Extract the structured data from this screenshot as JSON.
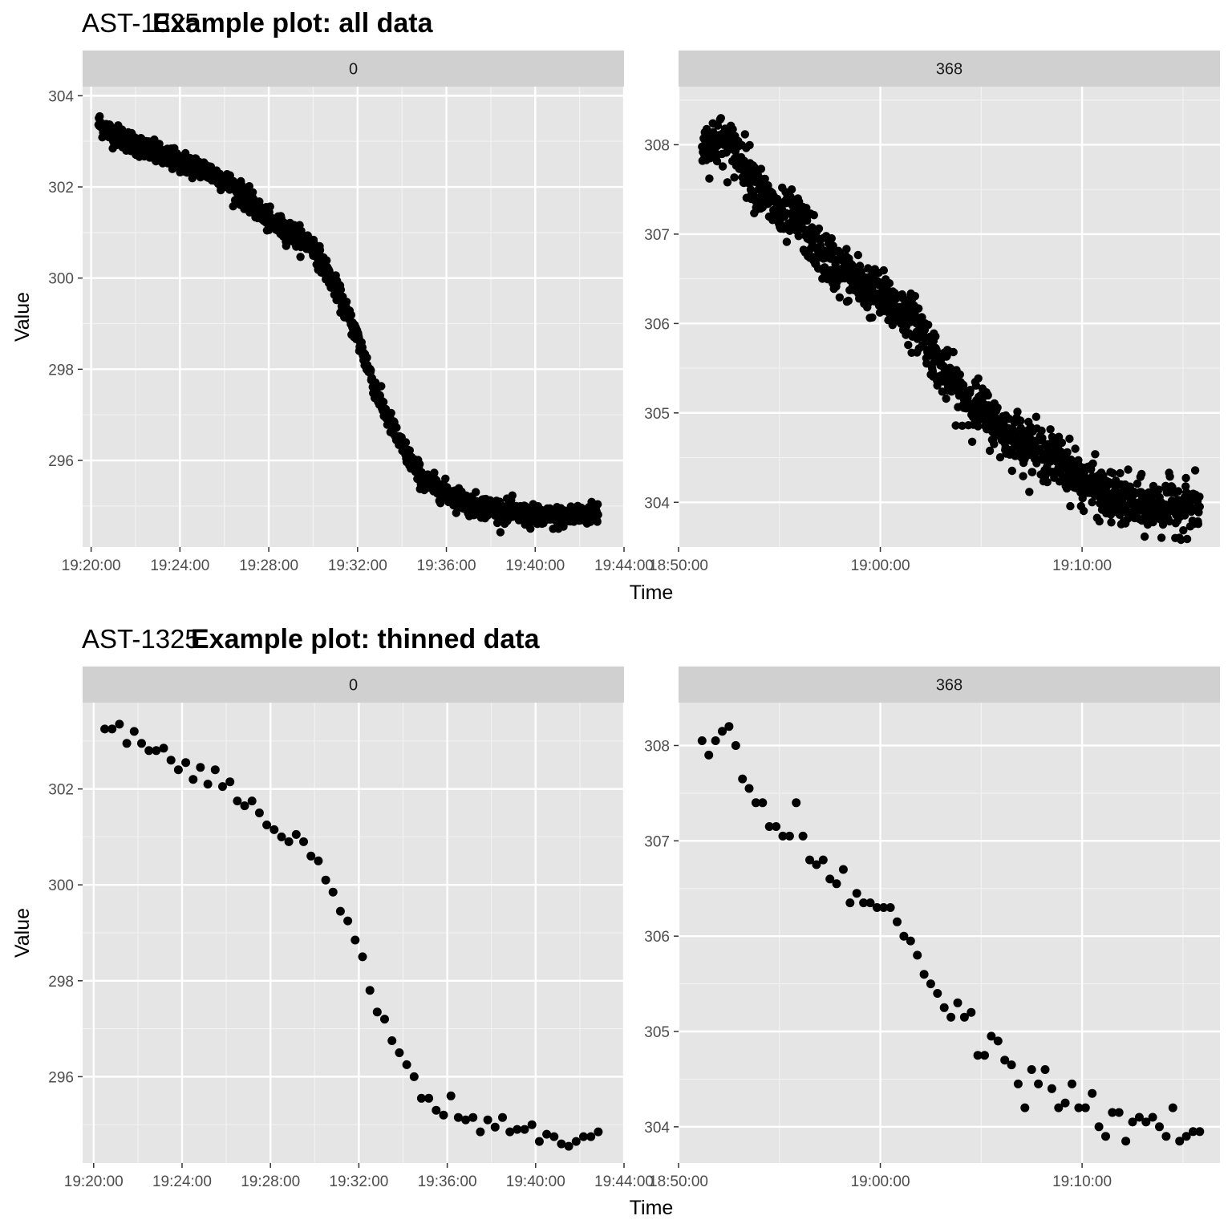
{
  "figure": {
    "rows": [
      {
        "title_prefix": "AST-1325",
        "title": "Example plot: all data",
        "xlabel": "Time",
        "ylabel": "Value"
      },
      {
        "title_prefix": "AST-1325",
        "title": "Example plot: thinned data",
        "xlabel": "Time",
        "ylabel": "Value"
      }
    ]
  },
  "colors": {
    "panel_background": "#e5e5e5",
    "strip_background": "#d0d0d0",
    "grid_major": "#ffffff",
    "grid_minor": "#f2f2f2",
    "points": "#000000",
    "tick_text": "#4d4d4d"
  },
  "chart_data": [
    {
      "type": "scatter",
      "plot": "Example plot: all data",
      "facet": "0",
      "xlabel": "Time",
      "ylabel": "Value",
      "xlim": [
        "19:19:37",
        "19:44:00"
      ],
      "ylim": [
        294.1,
        304.2
      ],
      "x_ticks": [
        "19:20:00",
        "19:24:00",
        "19:28:00",
        "19:32:00",
        "19:36:00",
        "19:40:00",
        "19:44:00"
      ],
      "y_ticks": [
        296,
        298,
        300,
        302,
        304
      ],
      "grid": true,
      "noise": 0.12,
      "x": [
        "19:20:20",
        "19:21:00",
        "19:22:00",
        "19:23:00",
        "19:24:00",
        "19:25:00",
        "19:26:00",
        "19:27:00",
        "19:28:00",
        "19:29:00",
        "19:30:00",
        "19:31:00",
        "19:32:00",
        "19:33:00",
        "19:34:00",
        "19:35:00",
        "19:36:00",
        "19:37:00",
        "19:38:00",
        "19:39:00",
        "19:40:00",
        "19:41:00",
        "19:42:00",
        "19:42:50"
      ],
      "y": [
        303.4,
        303.15,
        302.95,
        302.7,
        302.55,
        302.4,
        302.15,
        301.75,
        301.25,
        301.0,
        300.7,
        299.8,
        298.7,
        297.3,
        296.3,
        295.55,
        295.3,
        295.05,
        294.95,
        294.85,
        294.75,
        294.75,
        294.8,
        294.85
      ]
    },
    {
      "type": "scatter",
      "plot": "Example plot: all data",
      "facet": "368",
      "xlabel": "Time",
      "ylabel": "Value",
      "xlim": [
        "18:50:00",
        "19:16:50"
      ],
      "ylim": [
        303.5,
        308.65
      ],
      "x_ticks": [
        "18:50:00",
        "19:00:00",
        "19:10:00"
      ],
      "y_ticks": [
        304,
        305,
        306,
        307,
        308
      ],
      "grid": true,
      "noise": 0.14,
      "x": [
        "18:51:10",
        "18:52:00",
        "18:53:00",
        "18:54:00",
        "18:55:00",
        "18:56:00",
        "18:57:00",
        "18:58:00",
        "18:59:00",
        "19:00:00",
        "19:01:00",
        "19:02:00",
        "19:03:00",
        "19:04:00",
        "19:05:00",
        "19:06:00",
        "19:07:00",
        "19:08:00",
        "19:09:00",
        "19:10:00",
        "19:11:00",
        "19:12:00",
        "19:13:00",
        "19:14:00",
        "19:15:00",
        "19:15:50"
      ],
      "y": [
        308.0,
        308.05,
        307.9,
        307.5,
        307.2,
        307.15,
        306.8,
        306.6,
        306.45,
        306.3,
        306.15,
        305.95,
        305.5,
        305.2,
        305.05,
        304.8,
        304.7,
        304.55,
        304.45,
        304.25,
        304.1,
        304.0,
        303.95,
        303.95,
        303.95,
        303.95
      ]
    },
    {
      "type": "scatter",
      "plot": "Example plot: thinned data",
      "facet": "0",
      "xlabel": "Time",
      "ylabel": "Value",
      "xlim": [
        "19:19:30",
        "19:44:00"
      ],
      "ylim": [
        294.2,
        303.8
      ],
      "x_ticks": [
        "19:20:00",
        "19:24:00",
        "19:28:00",
        "19:32:00",
        "19:36:00",
        "19:40:00",
        "19:44:00"
      ],
      "y_ticks": [
        296,
        298,
        300,
        302
      ],
      "grid": true,
      "x": [
        "19:20:30",
        "19:20:50",
        "19:21:10",
        "19:21:30",
        "19:21:50",
        "19:22:10",
        "19:22:30",
        "19:22:50",
        "19:23:10",
        "19:23:30",
        "19:23:50",
        "19:24:10",
        "19:24:30",
        "19:24:50",
        "19:25:10",
        "19:25:30",
        "19:25:50",
        "19:26:10",
        "19:26:30",
        "19:26:50",
        "19:27:10",
        "19:27:30",
        "19:27:50",
        "19:28:10",
        "19:28:30",
        "19:28:50",
        "19:29:10",
        "19:29:30",
        "19:29:50",
        "19:30:10",
        "19:30:30",
        "19:30:50",
        "19:31:10",
        "19:31:30",
        "19:31:50",
        "19:32:10",
        "19:32:30",
        "19:32:50",
        "19:33:10",
        "19:33:30",
        "19:33:50",
        "19:34:10",
        "19:34:30",
        "19:34:50",
        "19:35:10",
        "19:35:30",
        "19:35:50",
        "19:36:10",
        "19:36:30",
        "19:36:50",
        "19:37:10",
        "19:37:30",
        "19:37:50",
        "19:38:10",
        "19:38:30",
        "19:38:50",
        "19:39:10",
        "19:39:30",
        "19:39:50",
        "19:40:10",
        "19:40:30",
        "19:40:50",
        "19:41:10",
        "19:41:30",
        "19:41:50",
        "19:42:10",
        "19:42:30",
        "19:42:50"
      ],
      "y": [
        303.25,
        303.25,
        303.35,
        302.95,
        303.2,
        302.95,
        302.8,
        302.8,
        302.85,
        302.6,
        302.4,
        302.55,
        302.2,
        302.45,
        302.1,
        302.4,
        302.05,
        302.15,
        301.75,
        301.65,
        301.75,
        301.5,
        301.25,
        301.15,
        301.0,
        300.9,
        301.05,
        300.9,
        300.6,
        300.5,
        300.1,
        299.85,
        299.45,
        299.25,
        298.85,
        298.5,
        297.8,
        297.35,
        297.2,
        296.75,
        296.5,
        296.25,
        296.0,
        295.55,
        295.55,
        295.3,
        295.2,
        295.6,
        295.15,
        295.1,
        295.15,
        294.85,
        295.1,
        294.95,
        295.15,
        294.85,
        294.9,
        294.9,
        295.0,
        294.65,
        294.8,
        294.75,
        294.6,
        294.55,
        294.65,
        294.75,
        294.75,
        294.85
      ]
    },
    {
      "type": "scatter",
      "plot": "Example plot: thinned data",
      "facet": "368",
      "xlabel": "Time",
      "ylabel": "Value",
      "xlim": [
        "18:50:00",
        "19:16:50"
      ],
      "ylim": [
        303.62,
        308.45
      ],
      "x_ticks": [
        "18:50:00",
        "19:00:00",
        "19:10:00"
      ],
      "y_ticks": [
        304,
        305,
        306,
        307,
        308
      ],
      "grid": true,
      "x": [
        "18:51:10",
        "18:51:30",
        "18:51:50",
        "18:52:10",
        "18:52:30",
        "18:52:50",
        "18:53:10",
        "18:53:30",
        "18:53:50",
        "18:54:10",
        "18:54:30",
        "18:54:50",
        "18:55:10",
        "18:55:30",
        "18:55:50",
        "18:56:10",
        "18:56:30",
        "18:56:50",
        "18:57:10",
        "18:57:30",
        "18:57:50",
        "18:58:10",
        "18:58:30",
        "18:58:50",
        "18:59:10",
        "18:59:30",
        "18:59:50",
        "19:00:10",
        "19:00:30",
        "19:00:50",
        "19:01:10",
        "19:01:30",
        "19:01:50",
        "19:02:10",
        "19:02:30",
        "19:02:50",
        "19:03:10",
        "19:03:30",
        "19:03:50",
        "19:04:10",
        "19:04:30",
        "19:04:50",
        "19:05:10",
        "19:05:30",
        "19:05:50",
        "19:06:10",
        "19:06:30",
        "19:06:50",
        "19:07:10",
        "19:07:30",
        "19:07:50",
        "19:08:10",
        "19:08:30",
        "19:08:50",
        "19:09:10",
        "19:09:30",
        "19:09:50",
        "19:10:10",
        "19:10:30",
        "19:10:50",
        "19:11:10",
        "19:11:30",
        "19:11:50",
        "19:12:10",
        "19:12:30",
        "19:12:50",
        "19:13:10",
        "19:13:30",
        "19:13:50",
        "19:14:10",
        "19:14:30",
        "19:14:50",
        "19:15:10",
        "19:15:30",
        "19:15:50"
      ],
      "y": [
        308.05,
        307.9,
        308.05,
        308.15,
        308.2,
        308.0,
        307.65,
        307.55,
        307.4,
        307.4,
        307.15,
        307.15,
        307.05,
        307.05,
        307.4,
        307.05,
        306.8,
        306.75,
        306.8,
        306.6,
        306.55,
        306.7,
        306.35,
        306.45,
        306.35,
        306.35,
        306.3,
        306.3,
        306.3,
        306.15,
        306.0,
        305.95,
        305.8,
        305.6,
        305.5,
        305.4,
        305.25,
        305.15,
        305.3,
        305.15,
        305.2,
        304.75,
        304.75,
        304.95,
        304.9,
        304.7,
        304.65,
        304.45,
        304.2,
        304.6,
        304.45,
        304.6,
        304.4,
        304.2,
        304.25,
        304.45,
        304.2,
        304.2,
        304.35,
        304.0,
        303.9,
        304.15,
        304.15,
        303.85,
        304.05,
        304.1,
        304.05,
        304.1,
        304.0,
        303.9,
        304.2,
        303.85,
        303.9,
        303.95,
        303.95
      ]
    }
  ]
}
